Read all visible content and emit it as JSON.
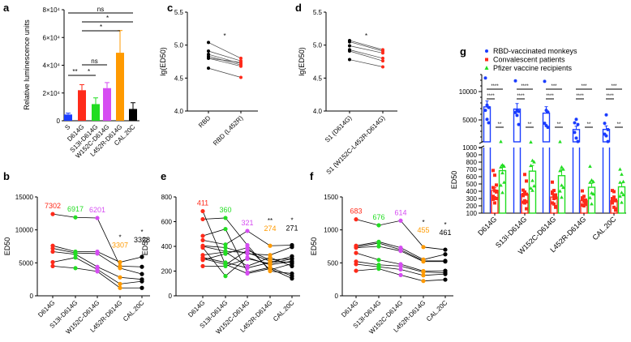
{
  "colors": {
    "blue": "#1a3cff",
    "red": "#ff2a1a",
    "green": "#22dd22",
    "purple": "#d64cf2",
    "orange": "#ff9a00",
    "black": "#000000"
  },
  "chart_data": [
    {
      "panel": "a",
      "type": "bar",
      "ylabel": "Relative luminescence units",
      "categories": [
        "S",
        "D614G",
        "S13I-D614G",
        "W152C-D614G",
        "L452R-D614G",
        "CAL.20C"
      ],
      "values": [
        4500,
        22000,
        12000,
        23500,
        49000,
        8500
      ],
      "errors": [
        1000,
        4000,
        4500,
        4000,
        16000,
        4500
      ],
      "bar_colors": [
        "blue",
        "red",
        "green",
        "purple",
        "orange",
        "black"
      ],
      "ylim": [
        0,
        80000
      ],
      "yticks": [
        0,
        20000,
        40000,
        60000,
        80000
      ],
      "ytick_labels": [
        "0",
        "2×10⁴",
        "4×10⁴",
        "6×10⁴",
        "8×10⁴"
      ],
      "significance": [
        {
          "from": 0,
          "to": 5,
          "level": 80000,
          "label": "ns"
        },
        {
          "from": 1,
          "to": 5,
          "level": 73000,
          "label": "*"
        },
        {
          "from": 1,
          "to": 4,
          "level": 68000,
          "label": "*"
        },
        {
          "from": 1,
          "to": 3,
          "level": 38000,
          "label": "ns"
        },
        {
          "from": 1,
          "to": 2,
          "level": 34000,
          "label": "*"
        },
        {
          "from": 0,
          "to": 1,
          "level": 34000,
          "label": "**"
        }
      ]
    },
    {
      "panel": "b",
      "type": "line",
      "ylabel": "ED50",
      "categories": [
        "D614G",
        "S13I-D614G",
        "W152C-D614G",
        "L452R-D614G",
        "CAL.20C"
      ],
      "ylim": [
        0,
        15000
      ],
      "yticks": [
        0,
        5000,
        10000,
        15000
      ],
      "means": [
        "7302",
        "6917",
        "6201",
        "3307",
        "3328"
      ],
      "stars": [
        "",
        "",
        "",
        "*",
        "*"
      ],
      "series": [
        [
          12400,
          11900,
          11800,
          4500,
          4400
        ],
        [
          7600,
          6700,
          6700,
          5100,
          5900
        ],
        [
          7200,
          6500,
          6400,
          4200,
          3300
        ],
        [
          6700,
          6300,
          4400,
          2800,
          2500
        ],
        [
          5100,
          5800,
          4000,
          1800,
          2200
        ],
        [
          4500,
          4200,
          3700,
          1200,
          1200
        ]
      ]
    },
    {
      "panel": "e",
      "type": "line",
      "ylabel": "ED50",
      "categories": [
        "D614G",
        "S13I-D614G",
        "W152C-D614G",
        "L452R-D614G",
        "CAL.20C"
      ],
      "ylim": [
        0,
        800
      ],
      "yticks": [
        0,
        200,
        400,
        600,
        800
      ],
      "means": [
        "411",
        "360",
        "321",
        "274",
        "271"
      ],
      "stars": [
        "",
        "",
        "",
        "**",
        "*"
      ],
      "series": [
        [
          685,
          250,
          370,
          290,
          300
        ],
        [
          620,
          630,
          410,
          200,
          180
        ],
        [
          485,
          540,
          190,
          230,
          160
        ],
        [
          450,
          415,
          525,
          405,
          410
        ],
        [
          405,
          390,
          340,
          330,
          395
        ],
        [
          390,
          160,
          310,
          250,
          280
        ],
        [
          330,
          355,
          240,
          310,
          240
        ],
        [
          310,
          270,
          225,
          270,
          320
        ],
        [
          300,
          255,
          180,
          220,
          140
        ],
        [
          290,
          340,
          390,
          210,
          260
        ],
        [
          240,
          240,
          300,
          260,
          300
        ],
        [
          400,
          360,
          350,
          280,
          270
        ]
      ]
    },
    {
      "panel": "f",
      "type": "line",
      "ylabel": "ED50",
      "categories": [
        "D614G",
        "S13I-D614G",
        "W152C-D614G",
        "L452R-D614G",
        "CAL.20C"
      ],
      "ylim": [
        0,
        1500
      ],
      "yticks": [
        0,
        500,
        1000,
        1500
      ],
      "means": [
        "683",
        "676",
        "614",
        "455",
        "461"
      ],
      "stars": [
        "",
        "",
        "",
        "*",
        "*"
      ],
      "series": [
        [
          1160,
          1070,
          1140,
          740,
          700
        ],
        [
          760,
          820,
          730,
          550,
          630
        ],
        [
          740,
          800,
          700,
          530,
          530
        ],
        [
          730,
          750,
          680,
          520,
          520
        ],
        [
          650,
          545,
          480,
          375,
          380
        ],
        [
          520,
          470,
          450,
          360,
          350
        ],
        [
          480,
          440,
          400,
          310,
          330
        ],
        [
          380,
          410,
          315,
          225,
          245
        ]
      ]
    },
    {
      "panel": "c",
      "type": "line",
      "ylabel": "lg(ED50)",
      "categories": [
        "RBD",
        "RBD (L452R)"
      ],
      "ylim": [
        4.0,
        5.5
      ],
      "yticks": [
        4.0,
        4.5,
        5.0,
        5.5
      ],
      "ytick_labels": [
        "4.0",
        "4.5",
        "5.0",
        "5.5"
      ],
      "star": "*",
      "series": [
        [
          5.04,
          4.8
        ],
        [
          4.91,
          4.76
        ],
        [
          4.86,
          4.72
        ],
        [
          4.83,
          4.7
        ],
        [
          4.8,
          4.68
        ],
        [
          4.8,
          4.74
        ],
        [
          4.65,
          4.51
        ]
      ]
    },
    {
      "panel": "d",
      "type": "line",
      "ylabel": "lg(ED50)",
      "categories": [
        "S1 (D614G)",
        "S1 (W152C-L452R-D614G)"
      ],
      "ylim": [
        4.0,
        5.5
      ],
      "yticks": [
        4.0,
        4.5,
        5.0,
        5.5
      ],
      "ytick_labels": [
        "4.0",
        "4.5",
        "5.0",
        "5.5"
      ],
      "star": "*",
      "series": [
        [
          5.07,
          4.93
        ],
        [
          5.05,
          4.91
        ],
        [
          4.99,
          4.88
        ],
        [
          4.93,
          4.8
        ],
        [
          4.91,
          4.76
        ],
        [
          4.78,
          4.67
        ]
      ]
    },
    {
      "panel": "g",
      "type": "bar",
      "ylabel": "ED50",
      "categories": [
        "D614G",
        "S13I-D614G",
        "W152C-D614G",
        "L452R-D614G",
        "CAL.20C"
      ],
      "legend": [
        "RBD-vaccinated monkeys",
        "Convalescent patients",
        "Pfizer vaccine recipients"
      ],
      "legend_position": "top-left",
      "series_means": {
        "monkeys": [
          7302,
          6917,
          6201,
          3307,
          3328
        ],
        "patients": [
          411,
          360,
          321,
          274,
          271
        ],
        "pfizer": [
          683,
          676,
          614,
          455,
          461
        ]
      },
      "points_from_panels": {
        "monkeys": "b",
        "patients": "e",
        "pfizer": "f"
      },
      "y_upper_ticks": [
        5000,
        10000
      ],
      "y_lower_ticks": [
        100,
        200,
        300,
        400,
        500,
        600,
        700,
        800,
        900,
        1000
      ],
      "significance": [
        [
          "****",
          "****",
          "**"
        ],
        [
          "****",
          "****",
          "**"
        ],
        [
          "***",
          "****",
          "**"
        ],
        [
          "***",
          "****",
          "**"
        ],
        [
          "***",
          "****",
          "**"
        ]
      ]
    }
  ],
  "panel_letters": [
    "a",
    "b",
    "c",
    "d",
    "e",
    "f",
    "g"
  ]
}
